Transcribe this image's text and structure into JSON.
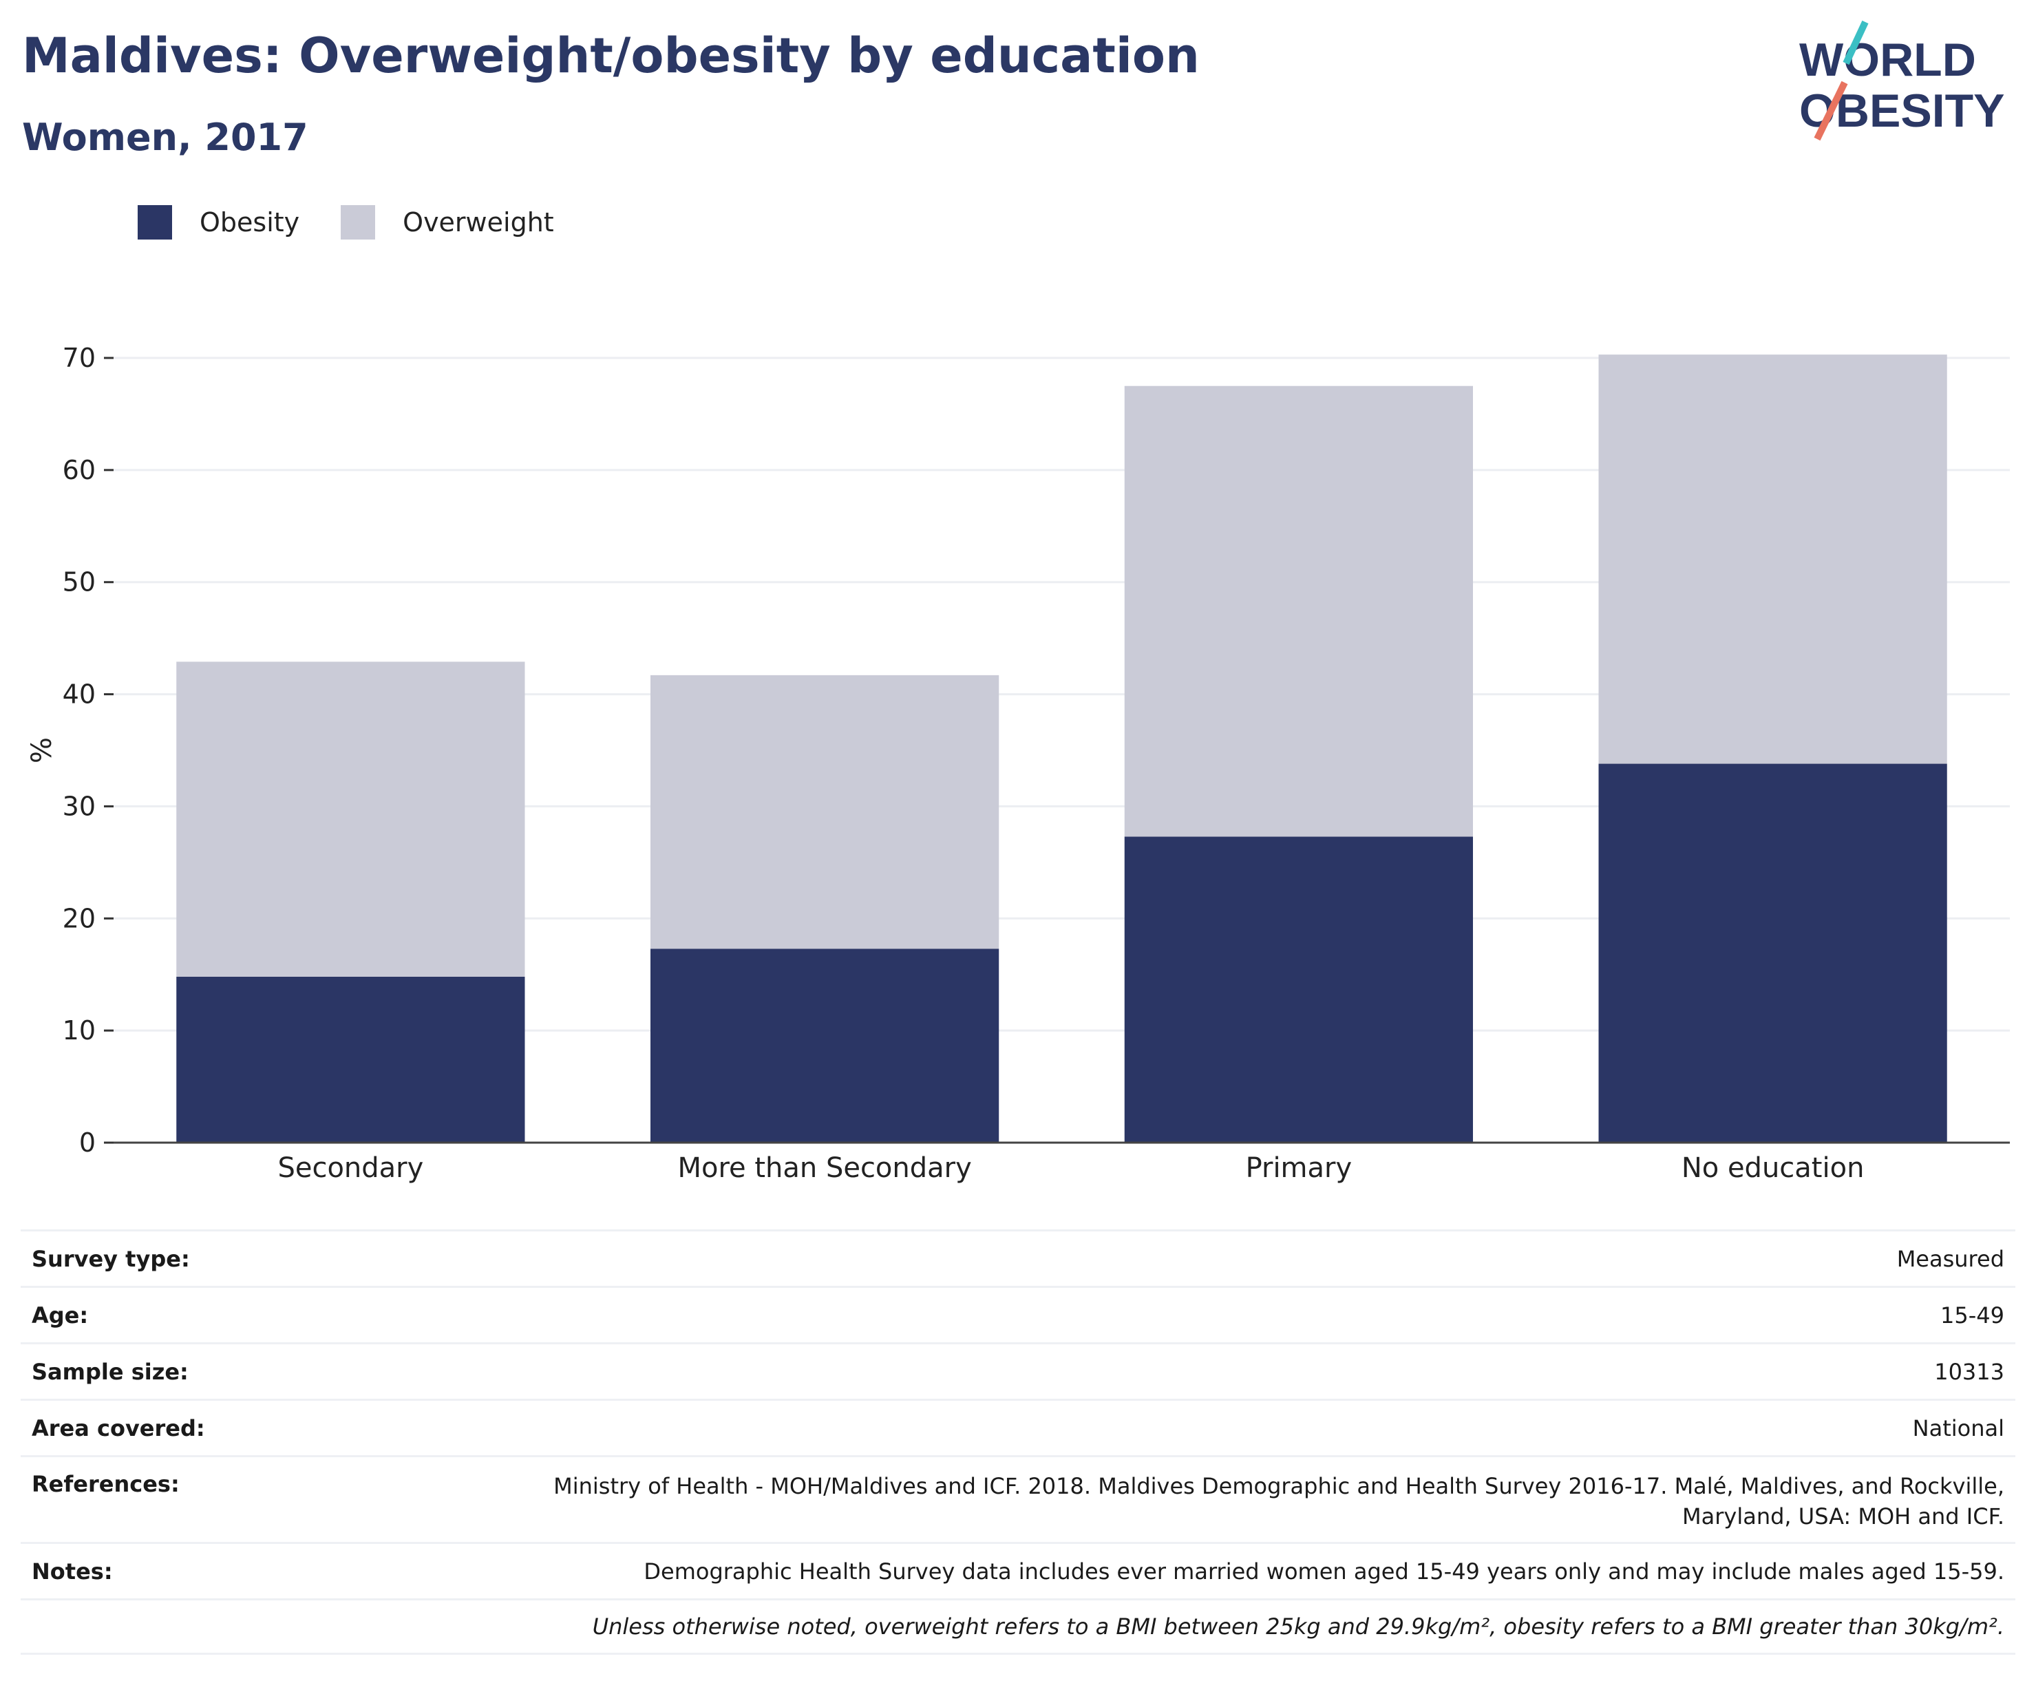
{
  "header": {
    "title": "Maldives: Overweight/obesity by education",
    "subtitle": "Women, 2017"
  },
  "logo": {
    "line1": "WORLD",
    "line2": "OBESITY",
    "colors": {
      "text": "#2b3865",
      "slash_top": "#3bbfc4",
      "slash_bottom": "#e8735f"
    }
  },
  "legend": [
    {
      "label": "Obesity",
      "color": "#2b3665"
    },
    {
      "label": "Overweight",
      "color": "#cacbd7"
    }
  ],
  "chart_data": {
    "type": "bar",
    "stacked": true,
    "categories": [
      "Secondary",
      "More than Secondary",
      "Primary",
      "No education"
    ],
    "series": [
      {
        "name": "Obesity",
        "values": [
          14.8,
          17.3,
          27.3,
          33.8
        ],
        "color": "#2b3665"
      },
      {
        "name": "Overweight",
        "values": [
          28.1,
          24.4,
          40.2,
          36.5
        ],
        "color": "#cacbd7"
      }
    ],
    "title": "Maldives: Overweight/obesity by education",
    "subtitle": "Women, 2017",
    "xlabel": "",
    "ylabel": "%",
    "ylim": [
      0,
      70
    ],
    "yticks": [
      0,
      10,
      20,
      30,
      40,
      50,
      60,
      70
    ],
    "grid": true,
    "legend_position": "top-left"
  },
  "info": {
    "rows": [
      {
        "key": "Survey type:",
        "value": "Measured"
      },
      {
        "key": "Age:",
        "value": "15-49"
      },
      {
        "key": "Sample size:",
        "value": "10313"
      },
      {
        "key": "Area covered:",
        "value": "National"
      },
      {
        "key": "References:",
        "value": "Ministry of Health - MOH/Maldives and ICF. 2018. Maldives Demographic and Health Survey 2016-17. Malé, Maldives, and Rockville, Maryland, USA: MOH and ICF."
      },
      {
        "key": "Notes:",
        "value": "Demographic Health Survey data includes ever married women aged 15-49 years only and may include males aged 15-59."
      }
    ],
    "footnote": "Unless otherwise noted, overweight refers to a BMI between 25kg and 29.9kg/m², obesity refers to a BMI greater than 30kg/m²."
  }
}
